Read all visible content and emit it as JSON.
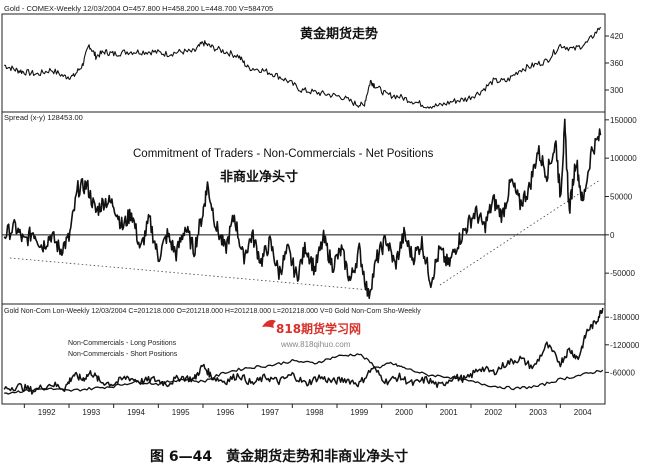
{
  "caption": "图 6—44　黄金期货走势和非商业净头寸",
  "watermark": {
    "brand": "818期货学习网",
    "url": "www.818qihuo.com"
  },
  "panels": {
    "price": {
      "header": "Gold - COMEX-Weekly   12/03/2004  O=457.800  H=458.200  L=448.700  V=584705",
      "title": "黄金期货走势"
    },
    "spread": {
      "header": "Spread (x-y)  128453.00",
      "title_en": "Commitment of Traders - Non-Commercials - Net Positions",
      "title_cn": "非商业净头寸"
    },
    "positions": {
      "header": "Gold Non-Com Lon-Weekly   12/03/2004  C=201218.000  O=201218.000  H=201218.000  L=201218.000  V=0  Gold Non-Com Sho-Weekly",
      "legend_long": "Non-Commercials - Long Positions",
      "legend_short": "Non-Commercials - Short Positions"
    }
  },
  "chart_data": [
    {
      "type": "line",
      "name_key": "price",
      "x_ticks": [
        "1992",
        "1993",
        "1994",
        "1995",
        "1996",
        "1997",
        "1998",
        "1999",
        "2000",
        "2001",
        "2002",
        "2003",
        "2004"
      ],
      "y_ticks": [
        300,
        360,
        420
      ],
      "ylim": [
        260,
        460
      ],
      "x": [
        1991.55,
        1991.8,
        1992.0,
        1992.3,
        1992.6,
        1992.9,
        1993.1,
        1993.3,
        1993.45,
        1993.6,
        1993.8,
        1994.0,
        1994.3,
        1994.6,
        1994.9,
        1995.2,
        1995.5,
        1995.8,
        1996.0,
        1996.2,
        1996.5,
        1996.8,
        1997.0,
        1997.3,
        1997.6,
        1997.9,
        1998.2,
        1998.5,
        1998.8,
        1999.1,
        1999.4,
        1999.6,
        1999.75,
        1999.85,
        2000.1,
        2000.4,
        2000.7,
        2001.0,
        2001.3,
        2001.6,
        2001.9,
        2002.2,
        2002.5,
        2002.8,
        2003.1,
        2003.4,
        2003.7,
        2004.0,
        2004.3,
        2004.6,
        2004.9
      ],
      "values": [
        355,
        345,
        340,
        335,
        345,
        330,
        330,
        355,
        400,
        375,
        385,
        380,
        385,
        385,
        385,
        380,
        385,
        385,
        405,
        395,
        385,
        375,
        350,
        345,
        335,
        320,
        300,
        295,
        290,
        285,
        270,
        265,
        320,
        310,
        290,
        285,
        275,
        265,
        265,
        275,
        280,
        295,
        320,
        320,
        345,
        355,
        365,
        400,
        390,
        405,
        440
      ]
    },
    {
      "type": "line",
      "name_key": "spread",
      "y_ticks": [
        -50000,
        0,
        50000,
        100000,
        150000
      ],
      "ylim": [
        -85000,
        155000
      ],
      "x": [
        1991.55,
        1991.8,
        1992.0,
        1992.2,
        1992.4,
        1992.6,
        1992.8,
        1993.0,
        1993.2,
        1993.4,
        1993.6,
        1993.8,
        1994.0,
        1994.2,
        1994.4,
        1994.6,
        1994.8,
        1995.0,
        1995.2,
        1995.4,
        1995.6,
        1995.8,
        1996.0,
        1996.1,
        1996.3,
        1996.5,
        1996.7,
        1996.9,
        1997.1,
        1997.3,
        1997.5,
        1997.7,
        1997.9,
        1998.1,
        1998.3,
        1998.5,
        1998.7,
        1998.9,
        1999.1,
        1999.3,
        1999.5,
        1999.7,
        1999.9,
        2000.1,
        2000.3,
        2000.5,
        2000.7,
        2000.9,
        2001.1,
        2001.3,
        2001.5,
        2001.7,
        2001.9,
        2002.1,
        2002.3,
        2002.5,
        2002.7,
        2002.9,
        2003.1,
        2003.3,
        2003.5,
        2003.7,
        2003.9,
        2004.0,
        2004.1,
        2004.2,
        2004.35,
        2004.5,
        2004.7,
        2004.9
      ],
      "values": [
        0,
        10000,
        -10000,
        5000,
        -15000,
        0,
        -20000,
        -5000,
        60000,
        65000,
        30000,
        45000,
        40000,
        10000,
        30000,
        -20000,
        20000,
        -30000,
        0,
        -25000,
        10000,
        -20000,
        30000,
        65000,
        10000,
        -20000,
        25000,
        -30000,
        0,
        -35000,
        -10000,
        -50000,
        -20000,
        -55000,
        -15000,
        -45000,
        -5000,
        -40000,
        -20000,
        -60000,
        -20000,
        -80000,
        -30000,
        -5000,
        -40000,
        0,
        -30000,
        -10000,
        -60000,
        -20000,
        -40000,
        -10000,
        10000,
        30000,
        10000,
        45000,
        25000,
        70000,
        40000,
        60000,
        110000,
        80000,
        120000,
        50000,
        140000,
        30000,
        100000,
        40000,
        110000,
        130000
      ]
    },
    {
      "type": "line",
      "name_key": "positions",
      "y_ticks": [
        60000,
        120000,
        180000
      ],
      "ylim": [
        0,
        200000
      ],
      "series": [
        {
          "name": "Non-Commercials - Long Positions",
          "x": [
            1991.55,
            1991.9,
            1992.2,
            1992.6,
            1992.9,
            1993.1,
            1993.3,
            1993.5,
            1993.7,
            1994.0,
            1994.3,
            1994.6,
            1994.9,
            1995.2,
            1995.5,
            1995.8,
            1996.0,
            1996.2,
            1996.5,
            1996.8,
            1997.1,
            1997.4,
            1997.7,
            1998.0,
            1998.3,
            1998.6,
            1998.9,
            1999.2,
            1999.5,
            1999.8,
            2000.1,
            2000.4,
            2000.7,
            2001.0,
            2001.3,
            2001.6,
            2001.9,
            2002.2,
            2002.5,
            2002.8,
            2003.1,
            2003.4,
            2003.7,
            2004.0,
            2004.2,
            2004.4,
            2004.6,
            2004.8,
            2004.95
          ],
          "values": [
            25000,
            30000,
            20000,
            35000,
            25000,
            55000,
            45000,
            60000,
            40000,
            35000,
            50000,
            40000,
            45000,
            35000,
            50000,
            45000,
            75000,
            50000,
            40000,
            55000,
            35000,
            50000,
            40000,
            55000,
            35000,
            50000,
            40000,
            45000,
            35000,
            70000,
            40000,
            50000,
            35000,
            45000,
            30000,
            50000,
            45000,
            70000,
            60000,
            80000,
            90000,
            70000,
            120000,
            80000,
            110000,
            90000,
            150000,
            170000,
            200000
          ]
        },
        {
          "name": "Non-Commercials - Short Positions",
          "x": [
            1991.55,
            1992.0,
            1992.5,
            1993.0,
            1993.5,
            1994.0,
            1994.5,
            1995.0,
            1995.5,
            1996.0,
            1996.5,
            1997.0,
            1997.5,
            1998.0,
            1998.5,
            1999.0,
            1999.5,
            1999.9,
            2000.2,
            2000.5,
            2001.0,
            2001.5,
            2002.0,
            2002.5,
            2003.0,
            2003.5,
            2004.0,
            2004.5,
            2004.95
          ],
          "values": [
            15000,
            20000,
            25000,
            20000,
            25000,
            30000,
            40000,
            35000,
            45000,
            40000,
            60000,
            70000,
            75000,
            85000,
            80000,
            95000,
            100000,
            70000,
            80000,
            70000,
            55000,
            50000,
            40000,
            30000,
            25000,
            30000,
            45000,
            55000,
            65000
          ]
        }
      ]
    }
  ]
}
